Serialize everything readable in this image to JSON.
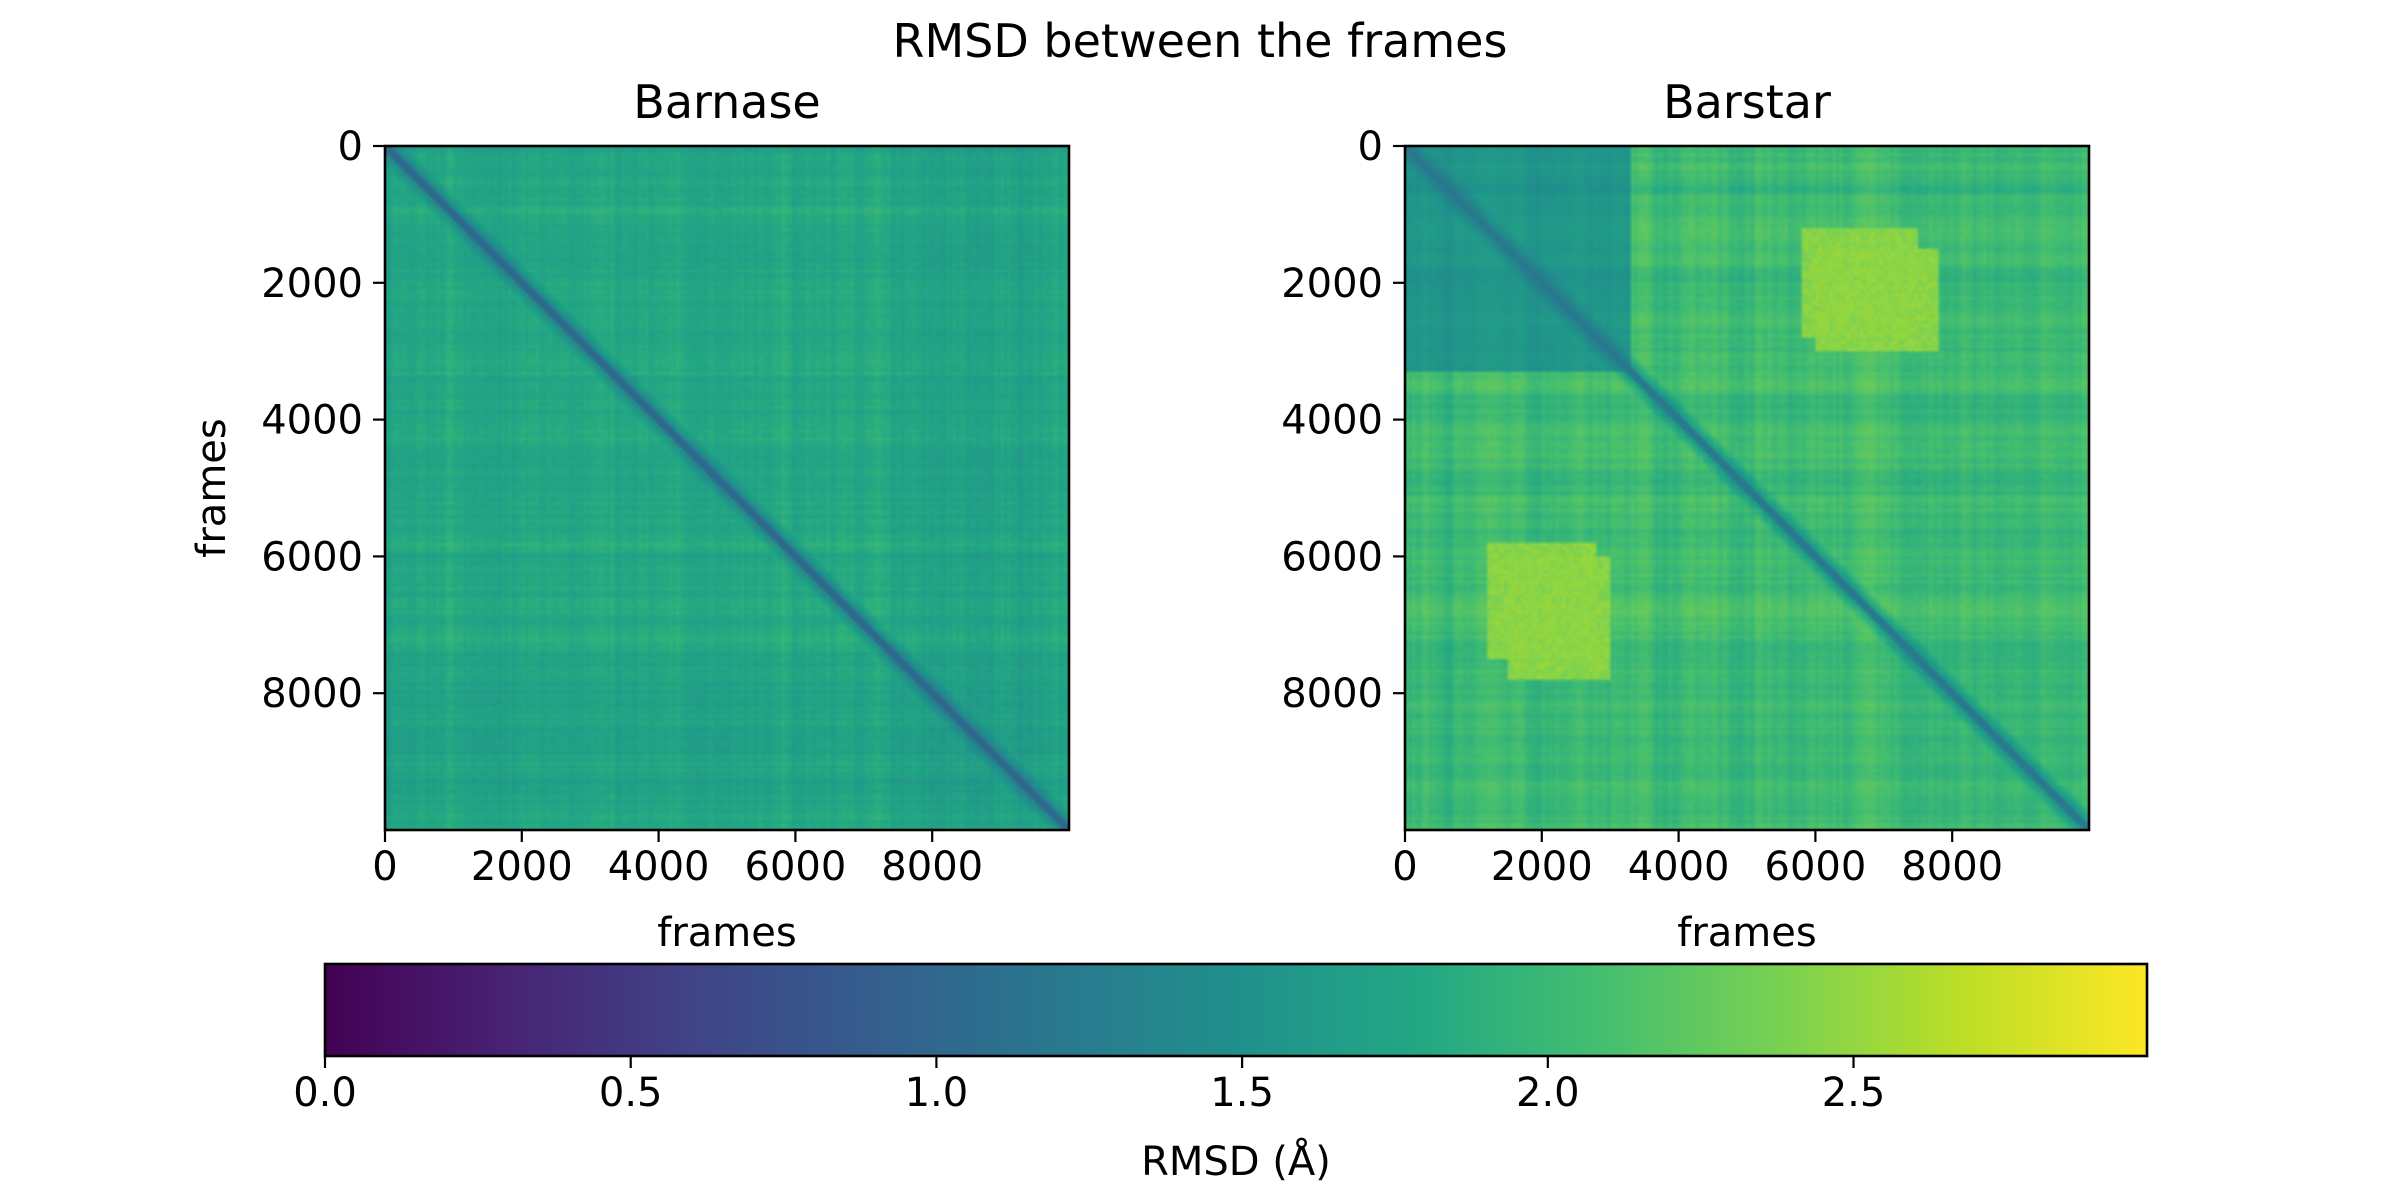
{
  "figure": {
    "suptitle": "RMSD between the frames"
  },
  "chart_data": [
    {
      "type": "heatmap",
      "title": "Barnase",
      "xlabel": "frames",
      "ylabel": "frames",
      "x_range": [
        0,
        10000
      ],
      "y_range": [
        0,
        10000
      ],
      "y_inverted": true,
      "x_ticks": [
        0,
        2000,
        4000,
        6000,
        8000
      ],
      "y_ticks": [
        0,
        2000,
        4000,
        6000,
        8000
      ],
      "colormap": "viridis",
      "value_unit": "RMSD (Å)",
      "diagonal_value": 0.8,
      "typical_value_range": [
        1.3,
        2.2
      ],
      "mean_value": 1.75,
      "bright_bands_frames": [
        3200,
        5900,
        7200
      ],
      "max_value": 2.3
    },
    {
      "type": "heatmap",
      "title": "Barstar",
      "xlabel": "frames",
      "ylabel": "",
      "x_range": [
        0,
        10000
      ],
      "y_range": [
        0,
        10000
      ],
      "y_inverted": true,
      "x_ticks": [
        0,
        2000,
        4000,
        6000,
        8000
      ],
      "y_ticks": [
        0,
        2000,
        4000,
        6000,
        8000
      ],
      "colormap": "viridis",
      "value_unit": "RMSD (Å)",
      "diagonal_value": 0.9,
      "typical_value_range": [
        1.5,
        2.6
      ],
      "mean_value": 2.0,
      "high_regions": [
        {
          "rows": [
            1500,
            3000
          ],
          "cols": [
            6000,
            7800
          ],
          "value": 2.45
        },
        {
          "rows": [
            5800,
            7500
          ],
          "cols": [
            1200,
            2800
          ],
          "value": 2.45
        }
      ],
      "low_block": {
        "frames": [
          0,
          3300
        ],
        "value": 1.55
      },
      "max_value": 2.6
    }
  ],
  "colorbar": {
    "label": "RMSD (Å)",
    "range": [
      0,
      2.98
    ],
    "ticks": [
      0.0,
      0.5,
      1.0,
      1.5,
      2.0,
      2.5
    ],
    "tick_labels": [
      "0.0",
      "0.5",
      "1.0",
      "1.5",
      "2.0",
      "2.5"
    ],
    "orientation": "horizontal"
  }
}
